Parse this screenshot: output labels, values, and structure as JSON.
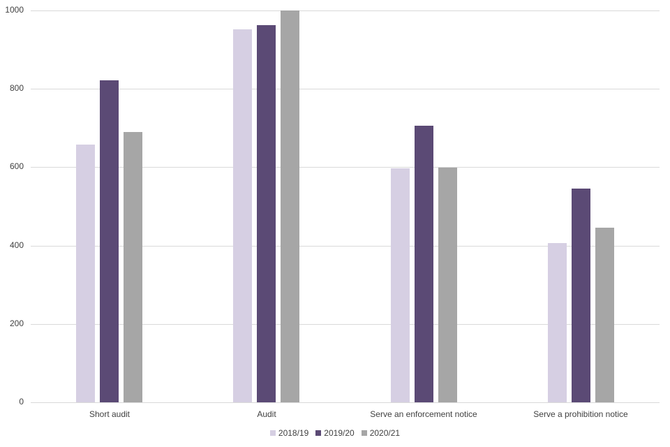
{
  "chart_data": {
    "type": "bar",
    "title": "",
    "xlabel": "",
    "ylabel": "",
    "ylim": [
      0,
      1000
    ],
    "yticks": [
      0,
      200,
      400,
      600,
      800,
      1000
    ],
    "grid": true,
    "legend_position": "bottom",
    "categories": [
      "Short audit",
      "Audit",
      "Serve an enforcement notice",
      "Serve a prohibition notice"
    ],
    "series": [
      {
        "name": "2018/19",
        "color": "#d6cfe3",
        "values": [
          658,
          952,
          597,
          406
        ]
      },
      {
        "name": "2019/20",
        "color": "#5b4a75",
        "values": [
          822,
          963,
          706,
          545
        ]
      },
      {
        "name": "2020/21",
        "color": "#a6a6a6",
        "values": [
          690,
          1000,
          599,
          446
        ]
      }
    ]
  }
}
